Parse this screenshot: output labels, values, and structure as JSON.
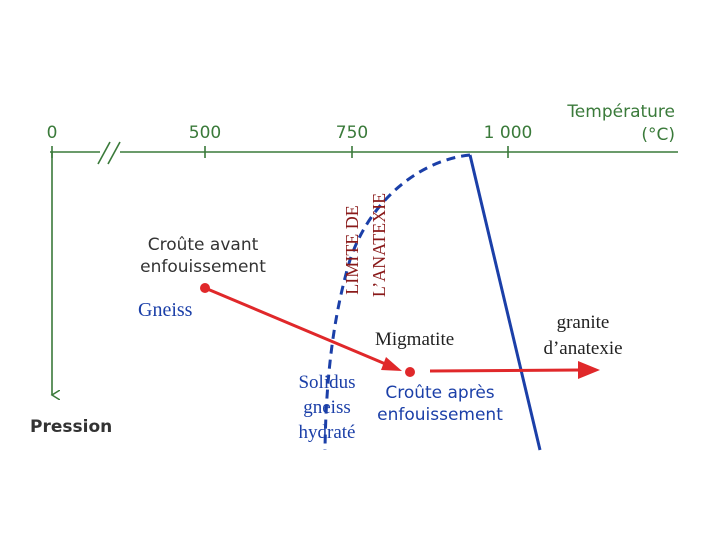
{
  "axis": {
    "title": "Température",
    "unit": "(°C)",
    "ticks": [
      "0",
      "500",
      "750",
      "1 000"
    ],
    "vertical_title": "Pression"
  },
  "labels": {
    "before": [
      "Croûte avant",
      "enfouissement"
    ],
    "gneiss": "Gneiss",
    "limit": [
      "LIMITE DE",
      "L’ANATEXIE"
    ],
    "migmatite": "Migmatite",
    "granite": [
      "granite",
      "d’anatexie"
    ],
    "solidus": [
      "Solidus",
      "gneiss",
      "hydraté"
    ],
    "after": [
      "Croûte après",
      "enfouissement"
    ]
  }
}
